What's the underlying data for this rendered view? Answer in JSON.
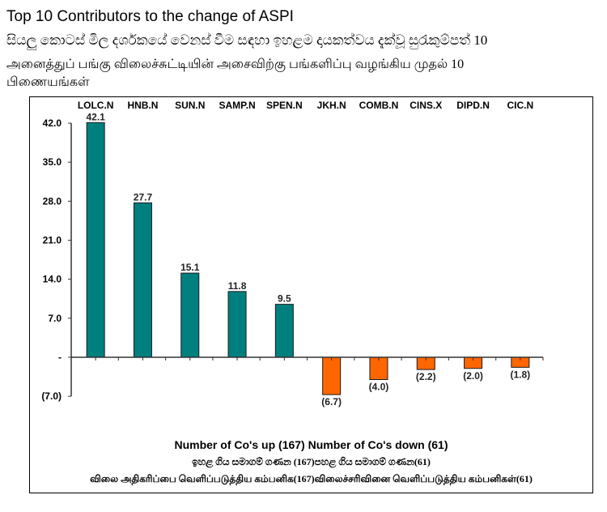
{
  "header": {
    "title": "Top 10 Contributors to the change of ASPI",
    "subtitle_sinhala": "සියලු කොටස් මිල දර්ශකයේ වෙනස් වීම සඳහා ඉහළම දායකත්වය දැක්වූ සුරැකුම්පත් 10",
    "subtitle_tamil": "அனைத்துப் பங்கு விலைச்சுட்டியின் அசைவிற்கு பங்களிப்பு வழங்கிய முதல் 10 பிணையங்கள்"
  },
  "footer": {
    "english": "Number of Co's up (167) Number of Co's down  (61)",
    "sinhala": "ඉහළ ගිය සමාගම් ගණන (167)පහළ ගිය සමාගම් ගණන(61)",
    "tamil": "விலை அதிகரிப்பை வெளிப்படுத்திய கம்பனிக(167)விலைச்சரிவினை வெளிப்படுத்திய கம்பனிகள்(61)"
  },
  "colors": {
    "positive": "#007F7F",
    "negative": "#FF6600",
    "outline": "#1a1a1a"
  },
  "chart_data": {
    "type": "bar",
    "title": "Top 10 Contributors to the change of ASPI",
    "categories": [
      "LOLC.N",
      "HNB.N",
      "SUN.N",
      "SAMP.N",
      "SPEN.N",
      "JKH.N",
      "COMB.N",
      "CINS.X",
      "DIPD.N",
      "CIC.N"
    ],
    "values": [
      42.1,
      27.7,
      15.1,
      11.8,
      9.5,
      -6.7,
      -4.0,
      -2.2,
      -2.0,
      -1.8
    ],
    "value_labels": [
      "42.1",
      "27.7",
      "15.1",
      "11.8",
      "9.5",
      "(6.7)",
      "(4.0)",
      "(2.2)",
      "(2.0)",
      "(1.8)"
    ],
    "yticks": [
      42.0,
      35.0,
      28.0,
      21.0,
      14.0,
      7.0,
      0,
      -7.0
    ],
    "ytick_labels": [
      "42.0",
      "35.0",
      "28.0",
      "21.0",
      "14.0",
      "7.0",
      "-",
      "(7.0)"
    ],
    "ylim": [
      -7.0,
      42.0
    ],
    "xlabel": "",
    "ylabel": "",
    "category_labels_position": "top",
    "grid": false,
    "legend": null
  }
}
